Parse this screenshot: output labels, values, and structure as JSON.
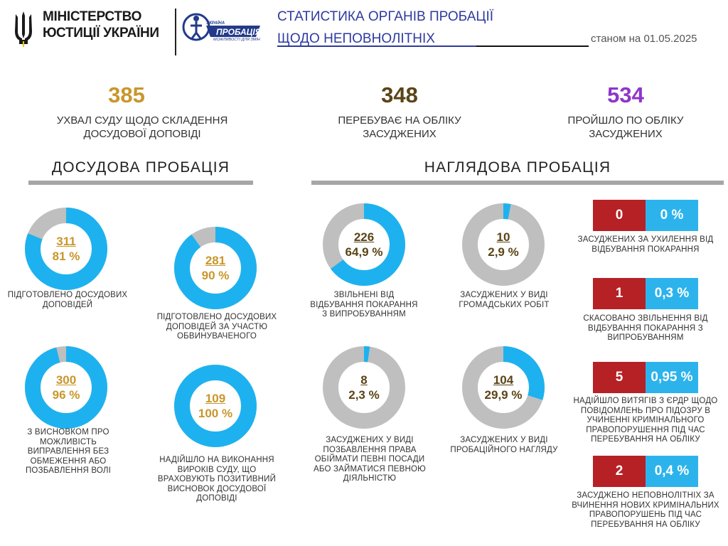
{
  "header": {
    "ministry_line1": "МІНІСТЕРСТВО",
    "ministry_line2": "ЮСТИЦІЇ УКРАЇНИ",
    "logo_top": "УКРАЇНА",
    "logo_main": "ПРОБАЦІЯ",
    "logo_bottom": "МОЖЛИВОСТІ ДЛЯ ЗМІН",
    "title_line1": "СТАТИСТИКА ОРГАНІВ ПРОБАЦІЇ",
    "title_line2": "ЩОДО НЕПОВНОЛІТНІХ",
    "date": "станом на 01.05.2025"
  },
  "top_stats": [
    {
      "value": "385",
      "label": "УХВАЛ СУДУ ЩОДО СКЛАДЕННЯ ДОСУДОВОЇ ДОПОВІДІ",
      "color": "#c9962a"
    },
    {
      "value": "348",
      "label": "ПЕРЕБУВАЄ НА ОБЛІКУ ЗАСУДЖЕНИХ",
      "color": "#5a4416"
    },
    {
      "value": "534",
      "label": "ПРОЙШЛО ПО ОБЛІКУ ЗАСУДЖЕНИХ",
      "color": "#8e35c9"
    }
  ],
  "sections": {
    "pretrial": "ДОСУДОВА  ПРОБАЦІЯ",
    "supervisory": "НАГЛЯДОВА   ПРОБАЦІЯ"
  },
  "colors": {
    "ring": "#1db2ef",
    "rest": "#bfbfbf",
    "red": "#b52125",
    "blue": "#2cb3ec"
  },
  "chart_data": [
    {
      "type": "pie",
      "group": "pretrial",
      "count": "311",
      "pct_label": "81 %",
      "percent": 81,
      "caption": "ПІДГОТОВЛЕНО ДОСУДОВИХ ДОПОВІДЕЙ"
    },
    {
      "type": "pie",
      "group": "pretrial",
      "count": "281",
      "pct_label": "90 %",
      "percent": 90,
      "caption": "ПІДГОТОВЛЕНО ДОСУДОВИХ ДОПОВІДЕЙ ЗА УЧАСТЮ ОБВИНУВАЧЕНОГО"
    },
    {
      "type": "pie",
      "group": "pretrial",
      "count": "300",
      "pct_label": "96 %",
      "percent": 96,
      "caption": "З ВИСНОВКОМ ПРО МОЖЛИВІСТЬ ВИПРАВЛЕННЯ БЕЗ ОБМЕЖЕННЯ АБО ПОЗБАВЛЕННЯ ВОЛІ"
    },
    {
      "type": "pie",
      "group": "pretrial",
      "count": "109",
      "pct_label": "100 %",
      "percent": 100,
      "caption": "НАДІЙШЛО НА ВИКОНАННЯ ВИРОКІВ СУДУ, ЩО ВРАХОВУЮТЬ ПОЗИТИВНИЙ ВИСНОВОК ДОСУДОВОЇ ДОПОВІДІ"
    },
    {
      "type": "pie",
      "group": "supervisory",
      "count": "226",
      "pct_label": "64,9 %",
      "percent": 64.9,
      "caption": "ЗВІЛЬНЕНІ ВІД ВІДБУВАННЯ ПОКАРАННЯ З ВИПРОБУВАННЯМ"
    },
    {
      "type": "pie",
      "group": "supervisory",
      "count": "10",
      "pct_label": "2,9 %",
      "percent": 2.9,
      "caption": "ЗАСУДЖЕНИХ У ВИДІ ГРОМАДСЬКИХ РОБІТ"
    },
    {
      "type": "pie",
      "group": "supervisory",
      "count": "8",
      "pct_label": "2,3 %",
      "percent": 2.3,
      "caption": "ЗАСУДЖЕНИХ У ВИДІ ПОЗБАВЛЕННЯ ПРАВА ОБІЙМАТИ ПЕВНІ ПОСАДИ АБО ЗАЙМАТИСЯ ПЕВНОЮ ДІЯЛЬНІСТЮ"
    },
    {
      "type": "pie",
      "group": "supervisory",
      "count": "104",
      "pct_label": "29,9 %",
      "percent": 29.9,
      "caption": "ЗАСУДЖЕНИХ У ВИДІ ПРОБАЦІЙНОГО НАГЛЯДУ"
    }
  ],
  "right_stats": [
    {
      "count": "0",
      "pct": "0 %",
      "caption": "ЗАСУДЖЕНИХ ЗА УХИЛЕННЯ ВІД ВІДБУВАННЯ ПОКАРАННЯ"
    },
    {
      "count": "1",
      "pct": "0,3 %",
      "caption": "СКАСОВАНО ЗВІЛЬНЕННЯ ВІД ВІДБУВАННЯ ПОКАРАННЯ З ВИПРОБУВАННЯМ"
    },
    {
      "count": "5",
      "pct": "0,95 %",
      "caption": "НАДІЙШЛО ВИТЯГІВ З ЄРДР ЩОДО ПОВІДОМЛЕНЬ ПРО ПІДОЗРУ В УЧИНЕННІ КРИМІНАЛЬНОГО ПРАВОПОРУШЕННЯ ПІД ЧАС ПЕРЕБУВАННЯ НА ОБЛІКУ"
    },
    {
      "count": "2",
      "pct": "0,4 %",
      "caption": "ЗАСУДЖЕНО НЕПОВНОЛІТНІХ ЗА ВЧИНЕННЯ НОВИХ КРИМІНАЛЬНИХ ПРАВОПОРУШЕНЬ ПІД ЧАС ПЕРЕБУВАННЯ НА ОБЛІКУ"
    }
  ]
}
